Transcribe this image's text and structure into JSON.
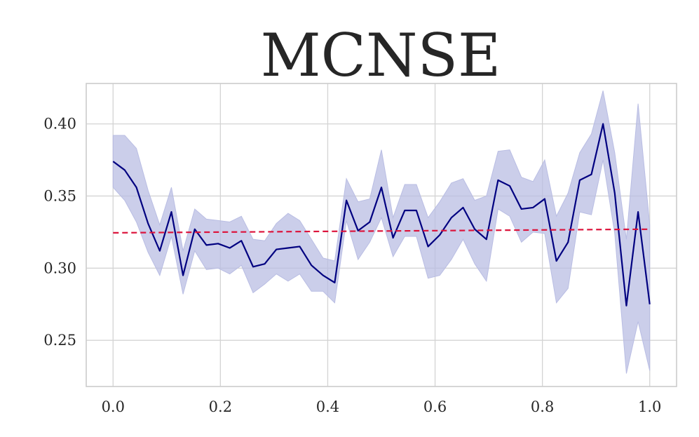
{
  "chart_data": {
    "type": "line",
    "title": "MCNSE",
    "xlabel": "",
    "ylabel": "",
    "xlim": [
      -0.05,
      1.05
    ],
    "ylim": [
      0.218,
      0.428
    ],
    "grid": true,
    "xticks": [
      0.0,
      0.2,
      0.4,
      0.6,
      0.8,
      1.0
    ],
    "xtick_labels": [
      "0.0",
      "0.2",
      "0.4",
      "0.6",
      "0.8",
      "1.0"
    ],
    "yticks": [
      0.25,
      0.3,
      0.35,
      0.4
    ],
    "ytick_labels": [
      "0.25",
      "0.30",
      "0.35",
      "0.40"
    ],
    "series": [
      {
        "color": "#000080",
        "band_color": "#b9bde3",
        "x": [
          0.0,
          0.0217,
          0.0435,
          0.0652,
          0.087,
          0.1087,
          0.1304,
          0.1522,
          0.1739,
          0.1957,
          0.2174,
          0.2391,
          0.2609,
          0.2826,
          0.3043,
          0.3261,
          0.3478,
          0.3696,
          0.3913,
          0.413,
          0.4348,
          0.4565,
          0.4783,
          0.5,
          0.5217,
          0.5435,
          0.5652,
          0.587,
          0.6087,
          0.6304,
          0.6522,
          0.6739,
          0.6957,
          0.7174,
          0.7391,
          0.7609,
          0.7826,
          0.8043,
          0.8261,
          0.8478,
          0.8696,
          0.8913,
          0.913,
          0.9348,
          0.9565,
          0.9783,
          1.0
        ],
        "y": [
          0.374,
          0.368,
          0.356,
          0.331,
          0.312,
          0.339,
          0.295,
          0.327,
          0.316,
          0.317,
          0.314,
          0.319,
          0.301,
          0.303,
          0.313,
          0.314,
          0.315,
          0.302,
          0.295,
          0.29,
          0.347,
          0.326,
          0.332,
          0.356,
          0.321,
          0.34,
          0.34,
          0.315,
          0.323,
          0.335,
          0.342,
          0.327,
          0.32,
          0.361,
          0.357,
          0.341,
          0.342,
          0.348,
          0.305,
          0.318,
          0.361,
          0.365,
          0.4,
          0.352,
          0.274,
          0.339,
          0.275
        ],
        "lower": [
          0.356,
          0.347,
          0.332,
          0.311,
          0.295,
          0.322,
          0.282,
          0.312,
          0.299,
          0.3,
          0.296,
          0.302,
          0.283,
          0.289,
          0.296,
          0.291,
          0.296,
          0.284,
          0.284,
          0.276,
          0.333,
          0.306,
          0.318,
          0.335,
          0.308,
          0.322,
          0.322,
          0.293,
          0.295,
          0.306,
          0.32,
          0.303,
          0.291,
          0.341,
          0.336,
          0.318,
          0.325,
          0.324,
          0.276,
          0.286,
          0.339,
          0.337,
          0.375,
          0.324,
          0.227,
          0.263,
          0.229
        ],
        "upper": [
          0.392,
          0.392,
          0.383,
          0.354,
          0.33,
          0.356,
          0.312,
          0.341,
          0.334,
          0.333,
          0.332,
          0.336,
          0.32,
          0.319,
          0.331,
          0.338,
          0.333,
          0.32,
          0.307,
          0.305,
          0.362,
          0.346,
          0.348,
          0.382,
          0.335,
          0.358,
          0.358,
          0.335,
          0.346,
          0.359,
          0.362,
          0.347,
          0.35,
          0.381,
          0.382,
          0.363,
          0.36,
          0.375,
          0.336,
          0.352,
          0.38,
          0.393,
          0.423,
          0.38,
          0.32,
          0.414,
          0.33
        ]
      },
      {
        "color": "#dc143c",
        "dashed": true,
        "x": [
          0.0,
          1.0
        ],
        "y": [
          0.3245,
          0.327
        ]
      }
    ]
  }
}
